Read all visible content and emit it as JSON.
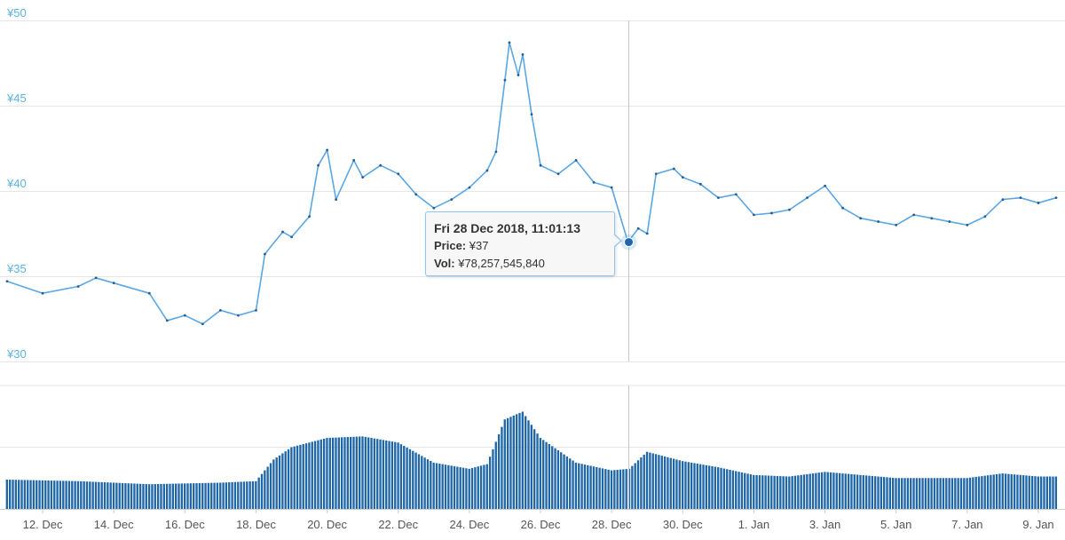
{
  "chart_data": {
    "type": "line",
    "title": "",
    "xlabel": "",
    "ylabel": "",
    "currency_symbol": "¥",
    "y_ticks": [
      "¥30",
      "¥35",
      "¥40",
      "¥45",
      "¥50"
    ],
    "ylim": [
      30,
      50
    ],
    "x_ticks": [
      "12. Dec",
      "14. Dec",
      "16. Dec",
      "18. Dec",
      "20. Dec",
      "22. Dec",
      "24. Dec",
      "26. Dec",
      "28. Dec",
      "30. Dec",
      "1. Jan",
      "3. Jan",
      "5. Jan",
      "7. Jan",
      "9. Jan"
    ],
    "x_range": [
      "2018-12-11",
      "2019-01-09"
    ],
    "grid": true,
    "legend": "none",
    "colors": {
      "price_line": "#5aa7e3",
      "price_marker": "#2a5d8f",
      "volume_bar": "#1f66a6",
      "tick_label_y": "#5ab4e4",
      "gridline": "#e6e6e6",
      "crosshair": "#c8c8c8",
      "tooltip_border": "#93c7ef"
    },
    "series": [
      {
        "kind": "price",
        "points": [
          [
            "2018-12-11",
            34.7
          ],
          [
            "2018-12-12",
            34.0
          ],
          [
            "2018-12-13",
            34.4
          ],
          [
            "2018-12-13 12:00",
            34.9
          ],
          [
            "2018-12-14",
            34.6
          ],
          [
            "2018-12-15",
            34.0
          ],
          [
            "2018-12-15 12:00",
            32.4
          ],
          [
            "2018-12-16",
            32.7
          ],
          [
            "2018-12-16 12:00",
            32.2
          ],
          [
            "2018-12-17",
            33.0
          ],
          [
            "2018-12-17 12:00",
            32.7
          ],
          [
            "2018-12-18",
            33.0
          ],
          [
            "2018-12-18 06:00",
            36.3
          ],
          [
            "2018-12-18 18:00",
            37.6
          ],
          [
            "2018-12-19",
            37.3
          ],
          [
            "2018-12-19 12:00",
            38.5
          ],
          [
            "2018-12-19 18:00",
            41.5
          ],
          [
            "2018-12-20",
            42.4
          ],
          [
            "2018-12-20 06:00",
            39.5
          ],
          [
            "2018-12-20 18:00",
            41.8
          ],
          [
            "2018-12-21",
            40.8
          ],
          [
            "2018-12-21 12:00",
            41.5
          ],
          [
            "2018-12-22",
            41.0
          ],
          [
            "2018-12-22 12:00",
            39.8
          ],
          [
            "2018-12-23",
            39.0
          ],
          [
            "2018-12-23 12:00",
            39.5
          ],
          [
            "2018-12-24",
            40.2
          ],
          [
            "2018-12-24 12:00",
            41.2
          ],
          [
            "2018-12-24 18:00",
            42.3
          ],
          [
            "2018-12-25",
            46.5
          ],
          [
            "2018-12-25 03:00",
            48.7
          ],
          [
            "2018-12-25 09:00",
            46.8
          ],
          [
            "2018-12-25 12:00",
            48.0
          ],
          [
            "2018-12-25 18:00",
            44.5
          ],
          [
            "2018-12-26",
            41.5
          ],
          [
            "2018-12-26 12:00",
            41.0
          ],
          [
            "2018-12-27",
            41.8
          ],
          [
            "2018-12-27 12:00",
            40.5
          ],
          [
            "2018-12-28",
            40.2
          ],
          [
            "2018-12-28 11:01",
            37.0
          ],
          [
            "2018-12-28 18:00",
            37.8
          ],
          [
            "2018-12-29",
            37.5
          ],
          [
            "2018-12-29 06:00",
            41.0
          ],
          [
            "2018-12-29 18:00",
            41.3
          ],
          [
            "2018-12-30",
            40.8
          ],
          [
            "2018-12-30 12:00",
            40.4
          ],
          [
            "2018-12-31",
            39.6
          ],
          [
            "2018-12-31 12:00",
            39.8
          ],
          [
            "2019-01-01",
            38.6
          ],
          [
            "2019-01-01 12:00",
            38.7
          ],
          [
            "2019-01-02",
            38.9
          ],
          [
            "2019-01-02 12:00",
            39.6
          ],
          [
            "2019-01-03",
            40.3
          ],
          [
            "2019-01-03 12:00",
            39.0
          ],
          [
            "2019-01-04",
            38.4
          ],
          [
            "2019-01-04 12:00",
            38.2
          ],
          [
            "2019-01-05",
            38.0
          ],
          [
            "2019-01-05 12:00",
            38.6
          ],
          [
            "2019-01-06",
            38.4
          ],
          [
            "2019-01-06 12:00",
            38.2
          ],
          [
            "2019-01-07",
            38.0
          ],
          [
            "2019-01-07 12:00",
            38.5
          ],
          [
            "2019-01-08",
            39.5
          ],
          [
            "2019-01-08 12:00",
            39.6
          ],
          [
            "2019-01-09",
            39.3
          ],
          [
            "2019-01-09 12:00",
            39.6
          ]
        ]
      },
      {
        "kind": "volume",
        "points": [
          [
            "2018-12-11",
            1.9
          ],
          [
            "2018-12-13",
            1.8
          ],
          [
            "2018-12-15",
            1.6
          ],
          [
            "2018-12-17",
            1.7
          ],
          [
            "2018-12-18",
            1.8
          ],
          [
            "2018-12-18 12:00",
            3.2
          ],
          [
            "2018-12-19",
            4.0
          ],
          [
            "2018-12-20",
            4.6
          ],
          [
            "2018-12-21",
            4.7
          ],
          [
            "2018-12-22",
            4.3
          ],
          [
            "2018-12-23",
            3.0
          ],
          [
            "2018-12-24",
            2.6
          ],
          [
            "2018-12-24 12:00",
            2.9
          ],
          [
            "2018-12-25",
            5.8
          ],
          [
            "2018-12-25 12:00",
            6.3
          ],
          [
            "2018-12-26",
            4.6
          ],
          [
            "2018-12-27",
            3.0
          ],
          [
            "2018-12-28",
            2.5
          ],
          [
            "2018-12-28 12:00",
            2.6
          ],
          [
            "2018-12-29",
            3.7
          ],
          [
            "2018-12-30",
            3.1
          ],
          [
            "2018-12-31",
            2.7
          ],
          [
            "2019-01-01",
            2.2
          ],
          [
            "2019-01-02",
            2.1
          ],
          [
            "2019-01-03",
            2.4
          ],
          [
            "2019-01-05",
            2.0
          ],
          [
            "2019-01-07",
            2.0
          ],
          [
            "2019-01-08",
            2.3
          ],
          [
            "2019-01-09",
            2.1
          ],
          [
            "2019-01-09 12:00",
            2.1
          ]
        ]
      }
    ]
  },
  "tooltip": {
    "date": "Fri 28 Dec 2018, 11:01:13",
    "price_label": "Price:",
    "price_value": "¥37",
    "vol_label": "Vol:",
    "vol_value": "¥78,257,545,840"
  }
}
